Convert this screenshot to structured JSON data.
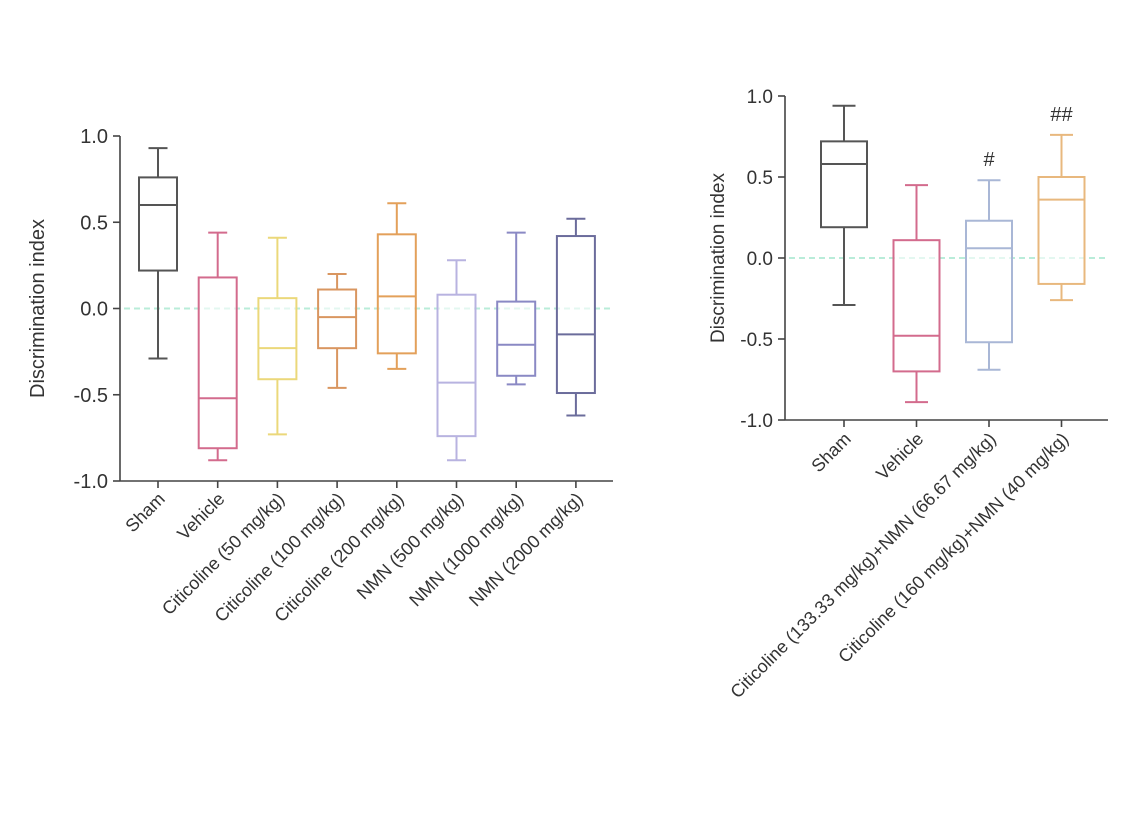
{
  "chart_data": [
    {
      "type": "boxplot",
      "id": "left",
      "title": "",
      "xlabel": "",
      "ylabel": "Discrimination index",
      "ylim": [
        -1.0,
        1.0
      ],
      "yticks": [
        1.0,
        0.5,
        0.0,
        -0.5,
        -1.0
      ],
      "ytick_labels": [
        "1.0",
        "0.5",
        "0.0",
        "-0.5",
        "-1.0"
      ],
      "reference_line": 0.0,
      "reference_line_color": "#b9ecd9",
      "groups": [
        {
          "label": "Sham",
          "color": "#555555",
          "min": -0.29,
          "q1": 0.22,
          "median": 0.6,
          "q3": 0.76,
          "max": 0.93,
          "annotation": ""
        },
        {
          "label": "Vehicle",
          "color": "#d36b8d",
          "min": -0.88,
          "q1": -0.81,
          "median": -0.52,
          "q3": 0.18,
          "max": 0.44,
          "annotation": ""
        },
        {
          "label": "Citicoline (50 mg/kg)",
          "color": "#ebd87a",
          "min": -0.73,
          "q1": -0.41,
          "median": -0.23,
          "q3": 0.06,
          "max": 0.41,
          "annotation": ""
        },
        {
          "label": "Citicoline (100 mg/kg)",
          "color": "#d99660",
          "min": -0.46,
          "q1": -0.23,
          "median": -0.05,
          "q3": 0.11,
          "max": 0.2,
          "annotation": ""
        },
        {
          "label": "Citicoline (200 mg/kg)",
          "color": "#e3a05a",
          "min": -0.35,
          "q1": -0.26,
          "median": 0.07,
          "q3": 0.43,
          "max": 0.61,
          "annotation": ""
        },
        {
          "label": "NMN (500 mg/kg)",
          "color": "#b8b3e0",
          "min": -0.88,
          "q1": -0.74,
          "median": -0.43,
          "q3": 0.08,
          "max": 0.28,
          "annotation": ""
        },
        {
          "label": "NMN (1000 mg/kg)",
          "color": "#8a89c4",
          "min": -0.44,
          "q1": -0.39,
          "median": -0.21,
          "q3": 0.04,
          "max": 0.44,
          "annotation": ""
        },
        {
          "label": "NMN (2000 mg/kg)",
          "color": "#6b6c9b",
          "min": -0.62,
          "q1": -0.49,
          "median": -0.15,
          "q3": 0.42,
          "max": 0.52,
          "annotation": ""
        }
      ]
    },
    {
      "type": "boxplot",
      "id": "right",
      "title": "",
      "xlabel": "",
      "ylabel": "Discrimination index",
      "ylim": [
        -1.0,
        1.0
      ],
      "yticks": [
        1.0,
        0.5,
        0.0,
        -0.5,
        -1.0
      ],
      "ytick_labels": [
        "1.0",
        "0.5",
        "0.0",
        "-0.5",
        "-1.0"
      ],
      "reference_line": 0.0,
      "reference_line_color": "#b9ecd9",
      "groups": [
        {
          "label": "Sham",
          "color": "#555555",
          "min": -0.29,
          "q1": 0.19,
          "median": 0.58,
          "q3": 0.72,
          "max": 0.94,
          "annotation": ""
        },
        {
          "label": "Vehicle",
          "color": "#d36b8d",
          "min": -0.89,
          "q1": -0.7,
          "median": -0.48,
          "q3": 0.11,
          "max": 0.45,
          "annotation": ""
        },
        {
          "label": "Citicoline (133.33 mg/kg)+NMN (66.67 mg/kg)",
          "color": "#a9b7d6",
          "min": -0.69,
          "q1": -0.52,
          "median": 0.06,
          "q3": 0.23,
          "max": 0.48,
          "annotation": "#"
        },
        {
          "label": "Citicoline (160 mg/kg)+NMN (40 mg/kg)",
          "color": "#e8b87e",
          "min": -0.26,
          "q1": -0.16,
          "median": 0.36,
          "q3": 0.5,
          "max": 0.76,
          "annotation": "##"
        }
      ]
    }
  ]
}
